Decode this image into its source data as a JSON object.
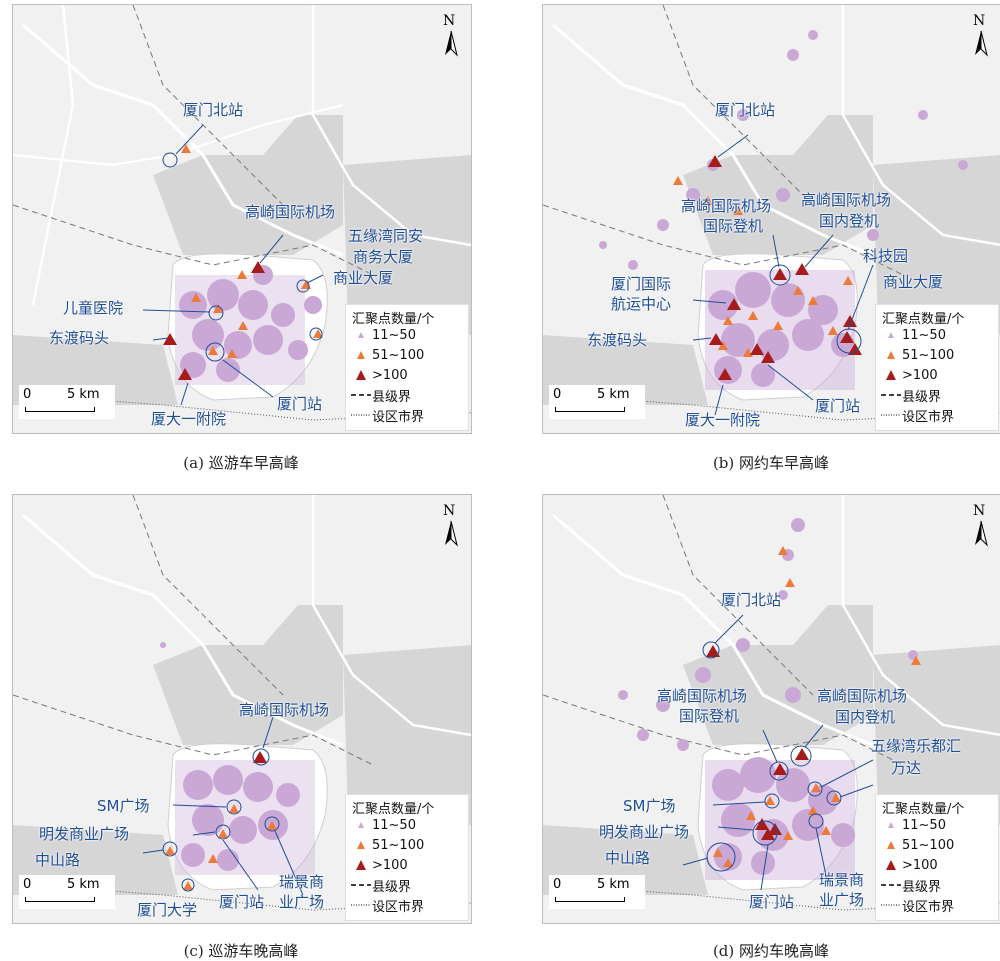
{
  "legend": {
    "title": "汇聚点数量/个",
    "small": "11~50",
    "medium": "51~100",
    "large": ">100",
    "county": "县级界",
    "city": "设区市界"
  },
  "scale": {
    "zero": "0",
    "km": "5 km"
  },
  "north": "N",
  "colors": {
    "cluster": "#c9a8d6",
    "medium": "#ee7a3a",
    "large": "#a61c1c",
    "label": "#1f4e96"
  },
  "panels": [
    {
      "caption": "(a) 巡游车早高峰",
      "labels": [
        "厦门北站",
        "高崎国际机场",
        "五缘湾同安",
        "商务大厦",
        "商业大厦",
        "儿童医院",
        "东渡码头",
        "厦门站",
        "厦大一附院"
      ]
    },
    {
      "caption": "(b) 网约车早高峰",
      "labels": [
        "厦门北站",
        "高崎国际机场",
        "国际登机",
        "高崎国际机场",
        "国内登机",
        "科技园",
        "商业大厦",
        "厦门国际",
        "航运中心",
        "东渡码头",
        "厦门站",
        "厦大一附院"
      ]
    },
    {
      "caption": "(c) 巡游车晚高峰",
      "labels": [
        "高崎国际机场",
        "SM广场",
        "明发商业广场",
        "中山路",
        "瑞景商",
        "业广场",
        "厦门站",
        "厦门大学"
      ]
    },
    {
      "caption": "(d) 网约车晚高峰",
      "labels": [
        "厦门北站",
        "高崎国际机场",
        "国际登机",
        "高崎国际机场",
        "国内登机",
        "五缘湾乐都汇",
        "万达",
        "SM广场",
        "明发商业广场",
        "中山路",
        "瑞景商",
        "业广场",
        "厦门站"
      ]
    }
  ]
}
